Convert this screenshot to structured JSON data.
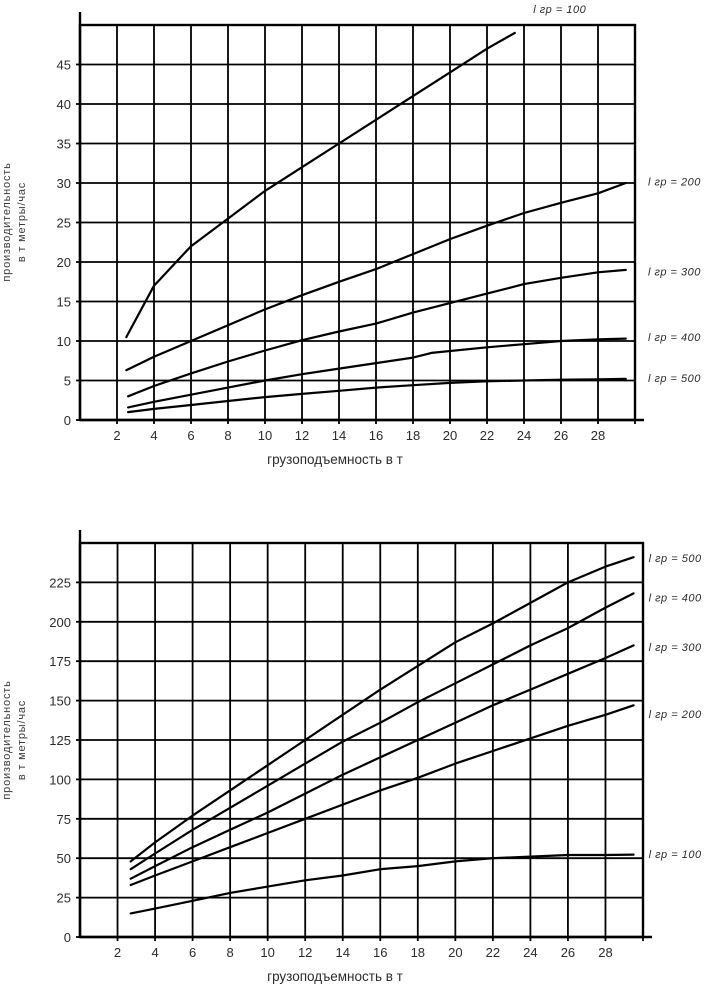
{
  "page": {
    "background": "#ffffff",
    "line_color": "#000000",
    "text_color": "#2b2b2b"
  },
  "chart_data": [
    {
      "type": "line",
      "position": "top",
      "title": "",
      "xlabel": "грузоподъемность в т",
      "ylabel": [
        "производительность",
        "в т метры/час"
      ],
      "xlim": [
        0,
        30
      ],
      "ylim": [
        0,
        50
      ],
      "x_ticks": [
        2,
        4,
        6,
        8,
        10,
        12,
        14,
        16,
        18,
        20,
        22,
        24,
        26,
        28
      ],
      "y_ticks": [
        0,
        5,
        10,
        15,
        20,
        25,
        30,
        35,
        40,
        45
      ],
      "grid": true,
      "legend_position": "right-annotations",
      "series": [
        {
          "name": "lgr-100",
          "label": "l гр = 100",
          "label_xy": [
            24.5,
            51.5
          ],
          "points": [
            [
              2.5,
              10.5
            ],
            [
              4,
              17
            ],
            [
              6,
              22
            ],
            [
              8,
              25.5
            ],
            [
              10,
              29
            ],
            [
              12,
              32
            ],
            [
              14,
              35
            ],
            [
              16,
              38
            ],
            [
              18,
              41
            ],
            [
              20,
              44
            ],
            [
              22,
              47
            ],
            [
              23.5,
              49
            ]
          ]
        },
        {
          "name": "lgr-200",
          "label": "l гр = 200",
          "label_xy": [
            30.7,
            29.7
          ],
          "points": [
            [
              2.5,
              6.3
            ],
            [
              4,
              8
            ],
            [
              6,
              10
            ],
            [
              8,
              12
            ],
            [
              10,
              14
            ],
            [
              12,
              15.8
            ],
            [
              14,
              17.5
            ],
            [
              16,
              19.1
            ],
            [
              18,
              21
            ],
            [
              20,
              22.9
            ],
            [
              22,
              24.6
            ],
            [
              24,
              26.2
            ],
            [
              26,
              27.5
            ],
            [
              28,
              28.7
            ],
            [
              29.5,
              30
            ]
          ]
        },
        {
          "name": "lgr-300",
          "label": "l гр = 300",
          "label_xy": [
            30.7,
            18.3
          ],
          "points": [
            [
              2.6,
              3
            ],
            [
              4,
              4.3
            ],
            [
              6,
              5.9
            ],
            [
              8,
              7.4
            ],
            [
              10,
              8.8
            ],
            [
              12,
              10.1
            ],
            [
              14,
              11.2
            ],
            [
              16,
              12.2
            ],
            [
              18,
              13.6
            ],
            [
              20,
              14.8
            ],
            [
              22,
              16
            ],
            [
              24,
              17.2
            ],
            [
              26,
              18
            ],
            [
              28,
              18.7
            ],
            [
              29.5,
              19
            ]
          ]
        },
        {
          "name": "lgr-400",
          "label": "l гр = 400",
          "label_xy": [
            30.7,
            10
          ],
          "points": [
            [
              2.6,
              1.6
            ],
            [
              4,
              2.3
            ],
            [
              6,
              3.2
            ],
            [
              8,
              4.1
            ],
            [
              10,
              5
            ],
            [
              12,
              5.8
            ],
            [
              14,
              6.5
            ],
            [
              16,
              7.2
            ],
            [
              18,
              7.9
            ],
            [
              19,
              8.5
            ],
            [
              22,
              9.2
            ],
            [
              24,
              9.6
            ],
            [
              26,
              10
            ],
            [
              28,
              10.2
            ],
            [
              29.5,
              10.3
            ]
          ]
        },
        {
          "name": "lgr-500",
          "label": "l гр = 500",
          "label_xy": [
            30.7,
            4.8
          ],
          "points": [
            [
              2.6,
              1
            ],
            [
              4,
              1.4
            ],
            [
              6,
              1.9
            ],
            [
              8,
              2.4
            ],
            [
              10,
              2.9
            ],
            [
              12,
              3.3
            ],
            [
              14,
              3.7
            ],
            [
              16,
              4.1
            ],
            [
              18,
              4.4
            ],
            [
              20,
              4.7
            ],
            [
              22,
              4.9
            ],
            [
              24,
              5
            ],
            [
              26,
              5.1
            ],
            [
              28,
              5.15
            ],
            [
              29.5,
              5.2
            ]
          ]
        }
      ]
    },
    {
      "type": "line",
      "position": "bottom",
      "title": "",
      "xlabel": "грузоподъемность в т",
      "ylabel": [
        "производительность",
        "в т метры/час"
      ],
      "xlim": [
        0,
        30
      ],
      "ylim": [
        0,
        250
      ],
      "x_ticks": [
        2,
        4,
        6,
        8,
        10,
        12,
        14,
        16,
        18,
        20,
        22,
        24,
        26,
        28
      ],
      "y_ticks": [
        0,
        25,
        50,
        75,
        100,
        125,
        150,
        175,
        200,
        225
      ],
      "grid": true,
      "legend_position": "right-annotations",
      "series": [
        {
          "name": "lgr-500",
          "label": "l гр = 500",
          "label_xy": [
            30.3,
            238
          ],
          "points": [
            [
              2.7,
              48
            ],
            [
              4,
              60
            ],
            [
              6,
              77
            ],
            [
              8,
              93
            ],
            [
              10,
              109
            ],
            [
              12,
              125
            ],
            [
              14,
              141
            ],
            [
              16,
              157
            ],
            [
              18,
              172
            ],
            [
              20,
              187
            ],
            [
              22,
              199
            ],
            [
              24,
              212
            ],
            [
              26,
              225
            ],
            [
              28,
              235
            ],
            [
              29.5,
              241
            ]
          ]
        },
        {
          "name": "lgr-400",
          "label": "l гр = 400",
          "label_xy": [
            30.3,
            213
          ],
          "points": [
            [
              2.7,
              43
            ],
            [
              4,
              53
            ],
            [
              6,
              68
            ],
            [
              8,
              82
            ],
            [
              10,
              96
            ],
            [
              12,
              110
            ],
            [
              14,
              124
            ],
            [
              16,
              136
            ],
            [
              18,
              149
            ],
            [
              20,
              161
            ],
            [
              22,
              173
            ],
            [
              24,
              185
            ],
            [
              26,
              196
            ],
            [
              28,
              209
            ],
            [
              29.5,
              218
            ]
          ]
        },
        {
          "name": "lgr-300",
          "label": "l гр = 300",
          "label_xy": [
            30.3,
            181.5
          ],
          "points": [
            [
              2.7,
              37
            ],
            [
              4,
              45
            ],
            [
              6,
              57
            ],
            [
              8,
              68
            ],
            [
              10,
              79
            ],
            [
              12,
              91
            ],
            [
              14,
              103
            ],
            [
              16,
              114
            ],
            [
              18,
              125
            ],
            [
              20,
              136
            ],
            [
              22,
              147
            ],
            [
              24,
              157
            ],
            [
              26,
              167
            ],
            [
              28,
              177
            ],
            [
              29.5,
              185
            ]
          ]
        },
        {
          "name": "lgr-200",
          "label": "l гр = 200",
          "label_xy": [
            30.3,
            139
          ],
          "points": [
            [
              2.7,
              33
            ],
            [
              4,
              39
            ],
            [
              6,
              48
            ],
            [
              8,
              57
            ],
            [
              10,
              66
            ],
            [
              12,
              75
            ],
            [
              14,
              84
            ],
            [
              16,
              93
            ],
            [
              18,
              101
            ],
            [
              20,
              110
            ],
            [
              22,
              118
            ],
            [
              24,
              126
            ],
            [
              26,
              134
            ],
            [
              28,
              141
            ],
            [
              29.5,
              147
            ]
          ]
        },
        {
          "name": "lgr-100",
          "label": "l гр = 100",
          "label_xy": [
            30.3,
            50
          ],
          "points": [
            [
              2.7,
              15
            ],
            [
              4,
              18
            ],
            [
              6,
              23
            ],
            [
              8,
              28
            ],
            [
              10,
              32
            ],
            [
              12,
              36
            ],
            [
              14,
              39
            ],
            [
              16,
              43
            ],
            [
              18,
              45
            ],
            [
              20,
              48
            ],
            [
              22,
              50
            ],
            [
              24,
              51
            ],
            [
              26,
              52
            ],
            [
              28,
              52
            ],
            [
              29.5,
              52.3
            ]
          ]
        }
      ]
    }
  ]
}
